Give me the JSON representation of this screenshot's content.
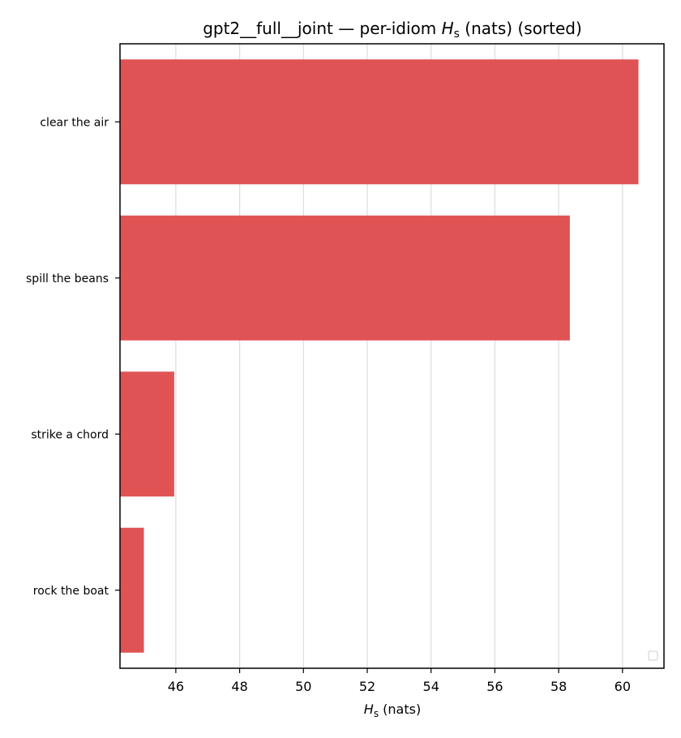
{
  "chart_data": {
    "type": "bar",
    "orientation": "horizontal",
    "title_main": "gpt2__full__joint — per-idiom ",
    "title_var": "H",
    "title_var_sub": "s",
    "title_rest": " (nats) (sorted)",
    "xlabel_var": "H",
    "xlabel_var_sub": "s",
    "xlabel_rest": " (nats)",
    "ylabel": "",
    "categories": [
      "clear the air",
      "spill the beans",
      "strike a chord",
      "rock the boat"
    ],
    "values": [
      60.5,
      58.35,
      45.95,
      45.0
    ],
    "xlim": [
      44.25,
      61.3
    ],
    "xticks": [
      46,
      48,
      50,
      52,
      54,
      56,
      58,
      60
    ],
    "grid": "x",
    "bar_color": "#e05355",
    "legend": "bottom-right (empty)"
  }
}
